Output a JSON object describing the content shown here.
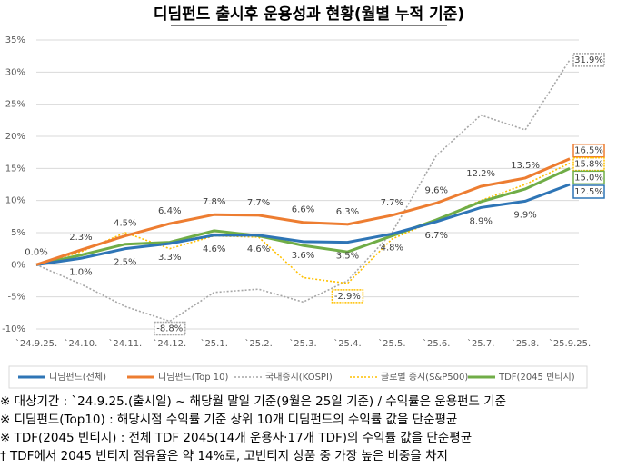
{
  "chart_data": {
    "type": "line",
    "title": "디딤펀드 출시후 운용성과 현황(월별 누적 기준)",
    "categories": [
      "`24.9.25.",
      "`24.10.",
      "`24.11.",
      "`24.12.",
      "`25.1.",
      "`25.2.",
      "`25.3.",
      "`25.4.",
      "`25.5.",
      "`25.6.",
      "`25.7.",
      "`25.8.",
      "`25.9.25."
    ],
    "ylim": [
      -10,
      35
    ],
    "yticks": [
      {
        "value": -10,
        "label": "-10%"
      },
      {
        "value": -5,
        "label": "-5%"
      },
      {
        "value": 0,
        "label": "0%"
      },
      {
        "value": 5,
        "label": "5%"
      },
      {
        "value": 10,
        "label": "10%"
      },
      {
        "value": 15,
        "label": "15%"
      },
      {
        "value": 20,
        "label": "20%"
      },
      {
        "value": 25,
        "label": "25%"
      },
      {
        "value": 30,
        "label": "30%"
      },
      {
        "value": 35,
        "label": "35%"
      }
    ],
    "grid": true,
    "legend": "bottom",
    "series": [
      {
        "name": "디딤펀드(전체)",
        "color": "#2e75b6",
        "dash": false,
        "values": [
          0,
          1.0,
          2.5,
          3.3,
          4.6,
          4.6,
          3.6,
          3.5,
          4.8,
          6.7,
          8.9,
          9.9,
          12.5
        ],
        "value_labels": [
          null,
          "1.0%",
          "2.5%",
          "3.3%",
          "4.6%",
          "4.6%",
          "3.6%",
          "3.5%",
          "4.8%",
          "6.7%",
          "8.9%",
          "9.9%",
          "12.5%"
        ]
      },
      {
        "name": "디딤펀드(Top 10)",
        "color": "#ed7d31",
        "dash": false,
        "values": [
          0.0,
          2.3,
          4.5,
          6.4,
          7.8,
          7.7,
          6.6,
          6.3,
          7.7,
          9.6,
          12.2,
          13.5,
          16.5
        ],
        "value_labels": [
          "0.0%",
          "2.3%",
          "4.5%",
          "6.4%",
          "7.8%",
          "7.7%",
          "6.6%",
          "6.3%",
          "7.7%",
          "9.6%",
          "12.2%",
          "13.5%",
          "16.5%"
        ]
      },
      {
        "name": "국내증시(KOSPI)",
        "color": "#a6a6a6",
        "dash": true,
        "values": [
          0,
          -3,
          -6.5,
          -8.8,
          -4.3,
          -3.8,
          -5.8,
          -2.5,
          5,
          17,
          23.3,
          21,
          31.9
        ],
        "value_labels": [
          null,
          null,
          null,
          "-8.8%",
          null,
          null,
          null,
          null,
          null,
          null,
          null,
          null,
          "31.9%"
        ]
      },
      {
        "name": "글로벌 증시(S&P500)",
        "color": "#ffc000",
        "dash": true,
        "values": [
          0,
          2,
          5,
          2.5,
          4.5,
          4.3,
          -2,
          -2.9,
          4,
          7,
          10,
          12.5,
          15.8
        ],
        "value_labels": [
          null,
          null,
          null,
          null,
          null,
          null,
          null,
          "-2.9%",
          null,
          null,
          null,
          null,
          "15.8%"
        ]
      },
      {
        "name": "TDF(2045 빈티지)",
        "color": "#70ad47",
        "dash": false,
        "values": [
          0,
          1.5,
          3.2,
          3.5,
          5.3,
          4.5,
          3,
          2,
          4.5,
          7,
          9.8,
          11.8,
          15.0
        ],
        "value_labels": [
          null,
          null,
          null,
          null,
          null,
          null,
          null,
          null,
          null,
          null,
          null,
          null,
          "15.0%"
        ]
      }
    ],
    "notes": [
      "※ 대상기간 : `24.9.25.(출시일) ~ 해당월 말일 기준(9월은 25일 기준) / 수익률은 운용펀드 기준",
      "※ 디딤펀드(Top10) : 해당시점 수익률 기준 상위 10개 디딤펀드의 수익률 값을 단순평균",
      "※ TDF(2045 빈티지) : 전체 TDF 2045(14개 운용사·17개 TDF)의 수익률 값을 단순평균",
      "  † TDF에서 2045 빈티지 점유율은 약 14%로, 고빈티지 상품 중 가장 높은 비중을 차지"
    ]
  }
}
